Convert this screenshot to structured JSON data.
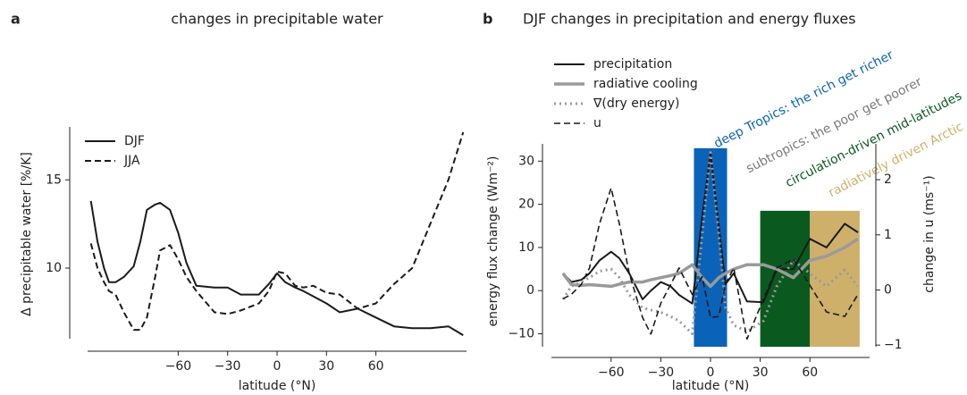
{
  "chart_data": [
    {
      "type": "line",
      "panel_label": "a",
      "title": "changes in precipitable water",
      "x_label": "latitude (°N)",
      "y_label": "Δ precipitable water [%/K]",
      "x": [
        -113,
        -109,
        -105,
        -102,
        -98,
        -93,
        -87,
        -83,
        -79,
        -74,
        -71,
        -65,
        -60,
        -55,
        -49,
        -38,
        -30,
        -22,
        -11,
        -5,
        0,
        5,
        11,
        16,
        22,
        30,
        38,
        49,
        60,
        71,
        82,
        93,
        104,
        113
      ],
      "series": [
        {
          "name": "DJF",
          "color": "#1a1a1a",
          "style": "solid",
          "width": 2,
          "values": [
            13.8,
            11.5,
            10,
            9.2,
            9.2,
            9.5,
            10.1,
            11.5,
            13.3,
            13.6,
            13.7,
            13.3,
            12,
            10.3,
            9,
            8.9,
            8.9,
            8.5,
            8.5,
            9.1,
            9.7,
            9.2,
            8.9,
            8.7,
            8.4,
            8,
            7.5,
            7.7,
            7.2,
            6.7,
            6.6,
            6.6,
            6.7,
            6.2
          ]
        },
        {
          "name": "JJA",
          "color": "#1a1a1a",
          "style": "dashed",
          "width": 2,
          "values": [
            11.4,
            10,
            9.2,
            8.7,
            8.5,
            7.5,
            6.5,
            6.5,
            7.2,
            9.5,
            11,
            11.3,
            10.5,
            9.5,
            8.7,
            7.5,
            7.4,
            7.6,
            8,
            8.7,
            9.8,
            9.7,
            9,
            8.9,
            9,
            8.6,
            8.5,
            7.7,
            8,
            9.1,
            10,
            12.5,
            15,
            17.7
          ]
        }
      ],
      "xlim": [
        -115,
        115
      ],
      "xticks": [
        {
          "value": -60,
          "label": "−60"
        },
        {
          "value": -30,
          "label": "−30"
        },
        0,
        30,
        60
      ],
      "ylim": [
        6,
        18
      ],
      "yticks": [
        10,
        15
      ],
      "grid": false,
      "legend": "upper left"
    },
    {
      "type": "line",
      "panel_label": "b",
      "title": "DJF changes in precipitation and energy fluxes",
      "x_label": "latitude (°N)",
      "y_label": "energy flux change (Wm⁻²)",
      "y2_label": "change in u (ms⁻¹)",
      "x": [
        -89,
        -84,
        -78,
        -73,
        -67,
        -60,
        -55,
        -49,
        -41,
        -36,
        -30,
        -24,
        -19,
        -11,
        -5,
        0,
        5,
        9,
        14,
        22,
        32,
        40,
        50,
        60,
        70,
        81,
        89
      ],
      "series": [
        {
          "name": "precipitation",
          "color": "#1a1a1a",
          "style": "solid",
          "width": 2,
          "values": [
            4,
            2,
            2.5,
            4,
            7,
            9,
            7.5,
            4,
            -2,
            0,
            2,
            1,
            -1,
            -3,
            17,
            32,
            15,
            1.5,
            4,
            -2.5,
            -2.7,
            5,
            5,
            12,
            10,
            15.5,
            13.5
          ]
        },
        {
          "name": "radiative cooling",
          "color": "#9a9a9a",
          "style": "solid",
          "width": 3.5,
          "values": [
            4,
            1.4,
            1.2,
            1.4,
            1.2,
            1,
            1.5,
            2,
            2,
            2.5,
            3,
            3.5,
            4,
            6,
            3,
            1,
            3,
            4,
            5,
            6,
            6,
            5,
            3,
            7,
            8,
            10,
            12
          ]
        },
        {
          "name": "∇(dry energy)",
          "color": "#9a9a9a",
          "style": "dotted",
          "width": 3,
          "values": [
            -2,
            1,
            2,
            3,
            4.5,
            5,
            3,
            -1,
            -4,
            -4.5,
            -5,
            -6,
            -7,
            -10,
            13,
            32,
            13,
            -4,
            -8,
            -9.5,
            -7,
            1,
            7,
            4,
            1,
            4.8,
            1
          ]
        },
        {
          "name": "u",
          "color": "#1a1a1a",
          "style": "dashed",
          "width": 1.6,
          "axis": "y2",
          "values": [
            -0.16,
            -0.08,
            0.1,
            0.4,
            1.2,
            1.85,
            1.2,
            0.3,
            -0.5,
            -0.8,
            -0.24,
            0.1,
            0.4,
            -0.08,
            0.24,
            -0.5,
            -0.48,
            0.1,
            0.4,
            -0.89,
            -0.16,
            0.4,
            0.56,
            0.08,
            -0.4,
            -0.48,
            -0.08
          ]
        }
      ],
      "regions": [
        {
          "label": "deep Tropics: the rich get richer",
          "color": "#0a63b8",
          "x": [
            -10,
            10
          ],
          "top": 33
        },
        {
          "label": "subtropics: the poor get poorer",
          "color": "#7a7a7a",
          "x": null,
          "top": null
        },
        {
          "label": "circulation-driven mid-latitudes",
          "color": "#0a5a20",
          "x": [
            30,
            60
          ],
          "top": 18.5
        },
        {
          "label": "radiatively driven Arctic",
          "color": "#cfb06a",
          "x": [
            60,
            90
          ],
          "top": 18.5
        }
      ],
      "xlim": [
        -96,
        96
      ],
      "xticks": [
        {
          "value": -60,
          "label": "−60"
        },
        {
          "value": -30,
          "label": "−30"
        },
        0,
        30,
        60
      ],
      "ylim": [
        -13,
        34
      ],
      "yticks": [
        {
          "value": -10,
          "label": "−10"
        },
        0,
        10,
        20,
        30
      ],
      "y2lim": [
        -1.03,
        2.65
      ],
      "y2ticks": [
        {
          "value": -1,
          "label": "−1"
        },
        0,
        1,
        2
      ],
      "grid": false,
      "legend": "upper left"
    }
  ]
}
